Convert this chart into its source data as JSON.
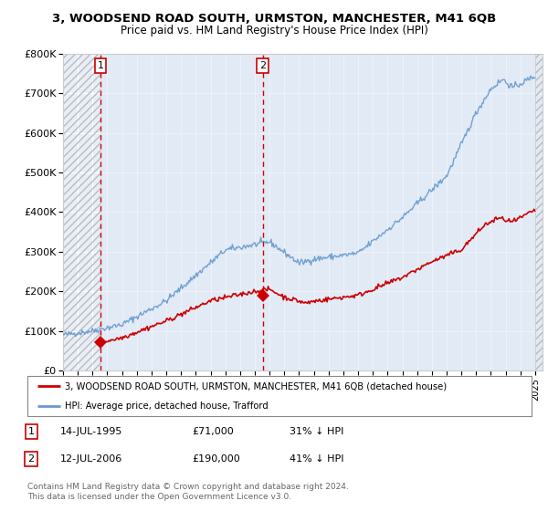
{
  "title1": "3, WOODSEND ROAD SOUTH, URMSTON, MANCHESTER, M41 6QB",
  "title2": "Price paid vs. HM Land Registry's House Price Index (HPI)",
  "ylim": [
    0,
    800000
  ],
  "yticks": [
    0,
    100000,
    200000,
    300000,
    400000,
    500000,
    600000,
    700000,
    800000
  ],
  "ytick_labels": [
    "£0",
    "£100K",
    "£200K",
    "£300K",
    "£400K",
    "£500K",
    "£600K",
    "£700K",
    "£800K"
  ],
  "xlim_left": 1993.0,
  "xlim_right": 2025.5,
  "sale1_x": 1995.53,
  "sale1_y": 71000,
  "sale1_label": "1",
  "sale2_x": 2006.53,
  "sale2_y": 190000,
  "sale2_label": "2",
  "hatch_end_x": 1995.53,
  "shade_end_x": 2006.53,
  "legend_line1": "3, WOODSEND ROAD SOUTH, URMSTON, MANCHESTER, M41 6QB (detached house)",
  "legend_line2": "HPI: Average price, detached house, Trafford",
  "ann1_num": "1",
  "ann1_date": "14-JUL-1995",
  "ann1_price": "£71,000",
  "ann1_hpi": "31% ↓ HPI",
  "ann2_num": "2",
  "ann2_date": "12-JUL-2006",
  "ann2_price": "£190,000",
  "ann2_hpi": "41% ↓ HPI",
  "footer": "Contains HM Land Registry data © Crown copyright and database right 2024.\nThis data is licensed under the Open Government Licence v3.0.",
  "red_color": "#cc0000",
  "blue_color": "#6699cc",
  "shade_color": "#dde8f5",
  "hatch_color": "#bbbbbb",
  "bg_color": "#e8eef8",
  "plot_bg": "#ffffff",
  "grid_color": "#ffffff"
}
